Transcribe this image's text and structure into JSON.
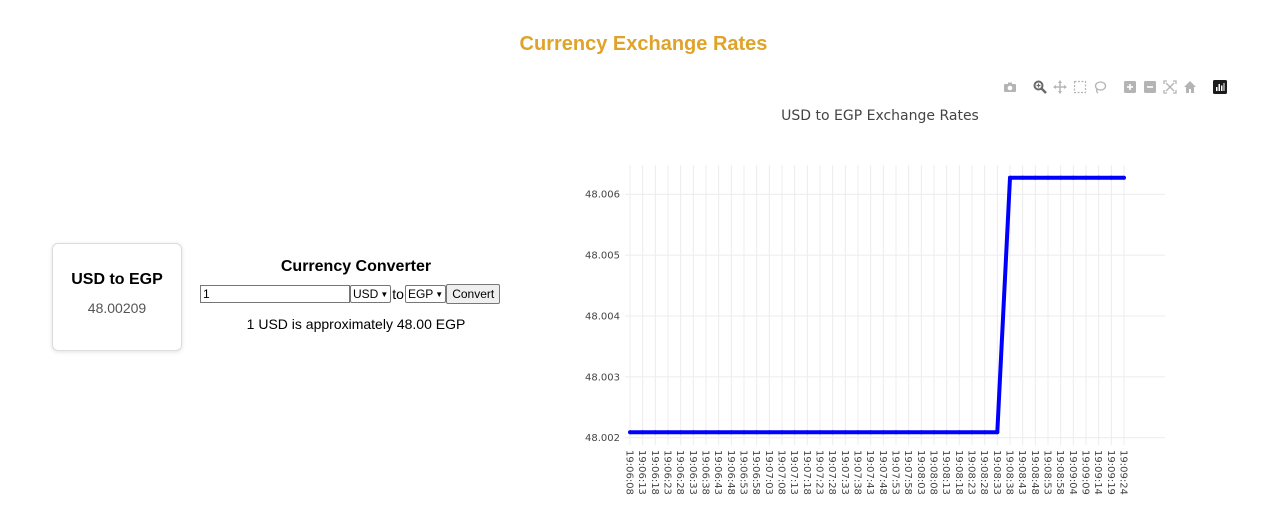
{
  "page": {
    "title": "Currency Exchange Rates"
  },
  "rate_card": {
    "title": "USD to EGP",
    "value": "48.00209"
  },
  "converter": {
    "title": "Currency Converter",
    "amount": "1",
    "from_currency": "USD",
    "to_word": "to",
    "to_currency": "EGP",
    "convert_label": "Convert",
    "result": "1 USD is approximately 48.00 EGP"
  },
  "modebar": {
    "icons": [
      "camera-icon",
      "zoom-icon",
      "pan-icon",
      "box-select-icon",
      "lasso-icon",
      "zoom-in-icon",
      "zoom-out-icon",
      "autoscale-icon",
      "reset-axes-icon",
      "plotly-logo-icon"
    ]
  },
  "colors": {
    "title": "#e0a32a",
    "line": "#0000ff",
    "grid": "#ececec",
    "text": "#444444"
  },
  "chart_data": {
    "type": "line",
    "title": "USD to EGP Exchange Rates",
    "xlabel": "",
    "ylabel": "",
    "x": [
      "19:06:08",
      "19:06:13",
      "19:06:18",
      "19:06:23",
      "19:06:28",
      "19:06:33",
      "19:06:38",
      "19:06:43",
      "19:06:48",
      "19:06:53",
      "19:06:58",
      "19:07:03",
      "19:07:08",
      "19:07:13",
      "19:07:18",
      "19:07:23",
      "19:07:28",
      "19:07:33",
      "19:07:38",
      "19:07:43",
      "19:07:48",
      "19:07:53",
      "19:07:58",
      "19:08:03",
      "19:08:08",
      "19:08:13",
      "19:08:18",
      "19:08:23",
      "19:08:28",
      "19:08:33",
      "19:08:38",
      "19:08:43",
      "19:08:48",
      "19:08:53",
      "19:08:58",
      "19:09:04",
      "19:09:09",
      "19:09:14",
      "19:09:19",
      "19:09:24"
    ],
    "series": [
      {
        "values": [
          48.00209,
          48.00209,
          48.00209,
          48.00209,
          48.00209,
          48.00209,
          48.00209,
          48.00209,
          48.00209,
          48.00209,
          48.00209,
          48.00209,
          48.00209,
          48.00209,
          48.00209,
          48.00209,
          48.00209,
          48.00209,
          48.00209,
          48.00209,
          48.00209,
          48.00209,
          48.00209,
          48.00209,
          48.00209,
          48.00209,
          48.00209,
          48.00209,
          48.00209,
          48.00209,
          48.00627,
          48.00627,
          48.00627,
          48.00627,
          48.00627,
          48.00627,
          48.00627,
          48.00627,
          48.00627,
          48.00627
        ]
      }
    ],
    "y_ticks": [
      "48.002",
      "48.003",
      "48.004",
      "48.005",
      "48.006"
    ],
    "ylim": [
      48.00188,
      48.00648
    ],
    "grid": true,
    "legend": "none"
  }
}
